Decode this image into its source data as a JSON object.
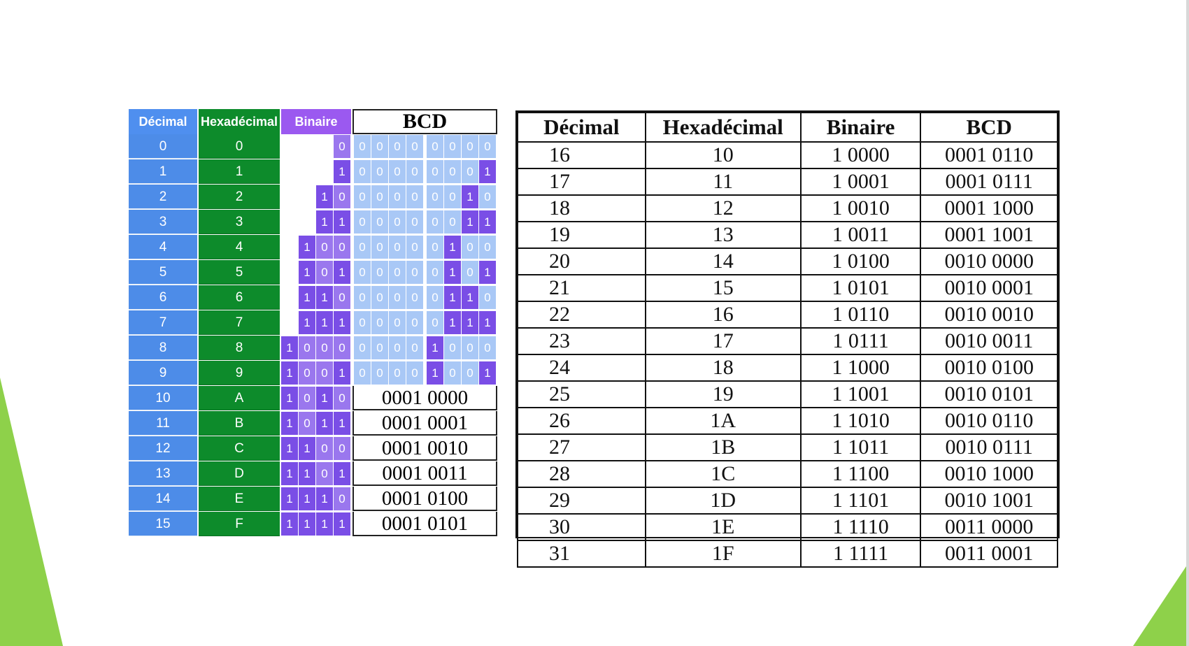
{
  "colors": {
    "decimal_bg": "#4d8ce8",
    "hex_bg": "#0d8b2b",
    "binary_bg": "#9b59f0",
    "bit_one": "#7a4ee6",
    "bit_zero_light_blue": "#a9c8f6",
    "slide_accent": "#8ed14a"
  },
  "left_table": {
    "headers": {
      "decimal": "Décimal",
      "hex": "Hexadécimal",
      "binary": "Binaire",
      "bcd": "BCD"
    },
    "rows": [
      {
        "dec": "0",
        "hex": "0",
        "bin": [
          "0"
        ],
        "bcd_hi": [
          "0",
          "0",
          "0",
          "0"
        ],
        "bcd_lo": [
          "0",
          "0",
          "0",
          "0"
        ],
        "bcd_text": ""
      },
      {
        "dec": "1",
        "hex": "1",
        "bin": [
          "1"
        ],
        "bcd_hi": [
          "0",
          "0",
          "0",
          "0"
        ],
        "bcd_lo": [
          "0",
          "0",
          "0",
          "1"
        ],
        "bcd_text": ""
      },
      {
        "dec": "2",
        "hex": "2",
        "bin": [
          "1",
          "0"
        ],
        "bcd_hi": [
          "0",
          "0",
          "0",
          "0"
        ],
        "bcd_lo": [
          "0",
          "0",
          "1",
          "0"
        ],
        "bcd_text": ""
      },
      {
        "dec": "3",
        "hex": "3",
        "bin": [
          "1",
          "1"
        ],
        "bcd_hi": [
          "0",
          "0",
          "0",
          "0"
        ],
        "bcd_lo": [
          "0",
          "0",
          "1",
          "1"
        ],
        "bcd_text": ""
      },
      {
        "dec": "4",
        "hex": "4",
        "bin": [
          "1",
          "0",
          "0"
        ],
        "bcd_hi": [
          "0",
          "0",
          "0",
          "0"
        ],
        "bcd_lo": [
          "0",
          "1",
          "0",
          "0"
        ],
        "bcd_text": ""
      },
      {
        "dec": "5",
        "hex": "5",
        "bin": [
          "1",
          "0",
          "1"
        ],
        "bcd_hi": [
          "0",
          "0",
          "0",
          "0"
        ],
        "bcd_lo": [
          "0",
          "1",
          "0",
          "1"
        ],
        "bcd_text": ""
      },
      {
        "dec": "6",
        "hex": "6",
        "bin": [
          "1",
          "1",
          "0"
        ],
        "bcd_hi": [
          "0",
          "0",
          "0",
          "0"
        ],
        "bcd_lo": [
          "0",
          "1",
          "1",
          "0"
        ],
        "bcd_text": ""
      },
      {
        "dec": "7",
        "hex": "7",
        "bin": [
          "1",
          "1",
          "1"
        ],
        "bcd_hi": [
          "0",
          "0",
          "0",
          "0"
        ],
        "bcd_lo": [
          "0",
          "1",
          "1",
          "1"
        ],
        "bcd_text": ""
      },
      {
        "dec": "8",
        "hex": "8",
        "bin": [
          "1",
          "0",
          "0",
          "0"
        ],
        "bcd_hi": [
          "0",
          "0",
          "0",
          "0"
        ],
        "bcd_lo": [
          "1",
          "0",
          "0",
          "0"
        ],
        "bcd_text": ""
      },
      {
        "dec": "9",
        "hex": "9",
        "bin": [
          "1",
          "0",
          "0",
          "1"
        ],
        "bcd_hi": [
          "0",
          "0",
          "0",
          "0"
        ],
        "bcd_lo": [
          "1",
          "0",
          "0",
          "1"
        ],
        "bcd_text": ""
      },
      {
        "dec": "10",
        "hex": "A",
        "bin": [
          "1",
          "0",
          "1",
          "0"
        ],
        "bcd_hi": [],
        "bcd_lo": [],
        "bcd_text": "0001 0000"
      },
      {
        "dec": "11",
        "hex": "B",
        "bin": [
          "1",
          "0",
          "1",
          "1"
        ],
        "bcd_hi": [],
        "bcd_lo": [],
        "bcd_text": "0001 0001"
      },
      {
        "dec": "12",
        "hex": "C",
        "bin": [
          "1",
          "1",
          "0",
          "0"
        ],
        "bcd_hi": [],
        "bcd_lo": [],
        "bcd_text": "0001 0010"
      },
      {
        "dec": "13",
        "hex": "D",
        "bin": [
          "1",
          "1",
          "0",
          "1"
        ],
        "bcd_hi": [],
        "bcd_lo": [],
        "bcd_text": "0001 0011"
      },
      {
        "dec": "14",
        "hex": "E",
        "bin": [
          "1",
          "1",
          "1",
          "0"
        ],
        "bcd_hi": [],
        "bcd_lo": [],
        "bcd_text": "0001 0100"
      },
      {
        "dec": "15",
        "hex": "F",
        "bin": [
          "1",
          "1",
          "1",
          "1"
        ],
        "bcd_hi": [],
        "bcd_lo": [],
        "bcd_text": "0001 0101"
      }
    ]
  },
  "right_table": {
    "headers": [
      "Décimal",
      "Hexadécimal",
      "Binaire",
      "BCD"
    ],
    "rows": [
      [
        "16",
        "10",
        "1 0000",
        "0001 0110"
      ],
      [
        "17",
        "11",
        "1 0001",
        "0001 0111"
      ],
      [
        "18",
        "12",
        "1 0010",
        "0001 1000"
      ],
      [
        "19",
        "13",
        "1 0011",
        "0001 1001"
      ],
      [
        "20",
        "14",
        "1 0100",
        "0010 0000"
      ],
      [
        "21",
        "15",
        "1 0101",
        "0010 0001"
      ],
      [
        "22",
        "16",
        "1 0110",
        "0010 0010"
      ],
      [
        "23",
        "17",
        "1 0111",
        "0010 0011"
      ],
      [
        "24",
        "18",
        "1 1000",
        "0010 0100"
      ],
      [
        "25",
        "19",
        "1 1001",
        "0010 0101"
      ],
      [
        "26",
        "1A",
        "1 1010",
        "0010 0110"
      ],
      [
        "27",
        "1B",
        "1 1011",
        "0010 0111"
      ],
      [
        "28",
        "1C",
        "1 1100",
        "0010 1000"
      ],
      [
        "29",
        "1D",
        "1 1101",
        "0010 1001"
      ],
      [
        "30",
        "1E",
        "1 1110",
        "0011 0000"
      ],
      [
        "31",
        "1F",
        "1 1111",
        "0011 0001"
      ]
    ]
  }
}
